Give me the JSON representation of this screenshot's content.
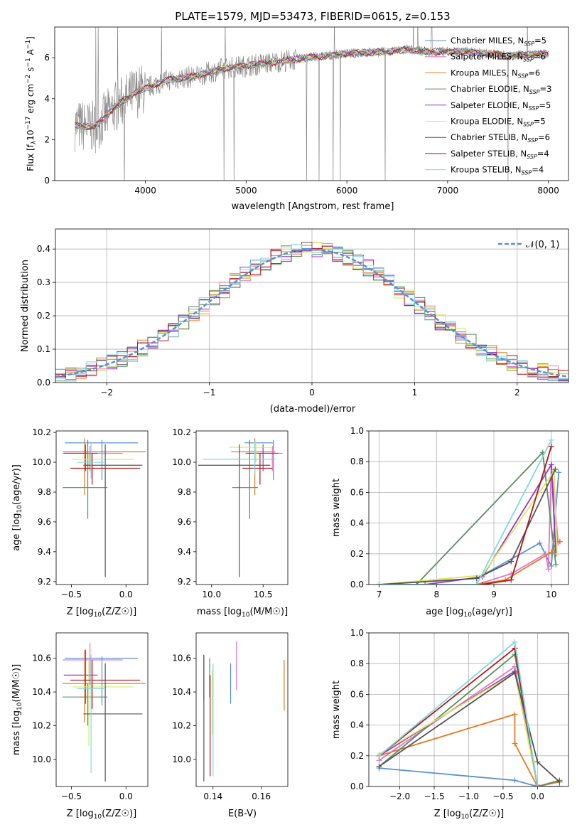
{
  "chart_data": [
    {
      "type": "line",
      "title": "PLATE=1579, MJD=53473, FIBERID=0615, z=0.153",
      "xlabel": "wavelength [Angstrom, rest frame]",
      "ylabel": "Flux [f_λ 10^-17 erg cm^-2 s^-1 A^-1]",
      "ylabel_parts": {
        "pre": "Flux [f",
        "sub": "λ",
        "mid": "10",
        "sup1": "−17",
        "mid2": " erg cm",
        "sup2": "−2",
        "mid3": " s",
        "sup3": "−1",
        "mid4": " A",
        "sup4": "−1",
        "post": "]"
      },
      "xlim": [
        3100,
        8200
      ],
      "ylim": [
        0,
        7.5
      ],
      "xticks": [
        4000,
        5000,
        6000,
        7000,
        8000
      ],
      "yticks": [
        0,
        2,
        4,
        6
      ],
      "grid": false,
      "legend_position": "top-right",
      "spectrum_anchors": {
        "x": [
          3300,
          3500,
          3700,
          3900,
          4000,
          4200,
          4500,
          4800,
          5000,
          5300,
          5600,
          6000,
          6400,
          6600,
          6800,
          7200,
          7600,
          8000
        ],
        "y": [
          2.7,
          2.6,
          3.6,
          4.3,
          4.5,
          4.9,
          5.1,
          5.5,
          5.6,
          5.8,
          6.0,
          6.2,
          6.3,
          6.4,
          6.3,
          6.3,
          6.1,
          6.2
        ]
      },
      "series": [
        {
          "name": "Chabrier MILES",
          "nssp": "5",
          "color": "#5b8fd4"
        },
        {
          "name": "Salpeter MILES",
          "nssp": "6",
          "color": "#e377c2"
        },
        {
          "name": "Kroupa MILES",
          "nssp": "6",
          "color": "#e07a23"
        },
        {
          "name": "Chabrier ELODIE",
          "nssp": "3",
          "color": "#5a8f5f"
        },
        {
          "name": "Salpeter ELODIE",
          "nssp": "5",
          "color": "#9b30c8"
        },
        {
          "name": "Kroupa ELODIE",
          "nssp": "5",
          "color": "#d9e85c"
        },
        {
          "name": "Chabrier STELIB",
          "nssp": "6",
          "color": "#555555"
        },
        {
          "name": "Salpeter STELIB",
          "nssp": "4",
          "color": "#b01515"
        },
        {
          "name": "Kroupa STELIB",
          "nssp": "4",
          "color": "#7fd8e0"
        }
      ],
      "data_color": "#808080"
    },
    {
      "type": "line",
      "xlabel": "(data-model)/error",
      "ylabel": "Normed distribution",
      "xlim": [
        -2.5,
        2.5
      ],
      "ylim": [
        0,
        0.46
      ],
      "xticks": [
        -2,
        -1,
        0,
        1,
        2
      ],
      "yticks": [
        0.0,
        0.1,
        0.2,
        0.3,
        0.4
      ],
      "grid": true,
      "legend_position": "top-right",
      "gaussian_label": "𝒩(0, 1)",
      "gaussian_color": "#5b8fd4",
      "bin_width": 0.1
    },
    {
      "type": "scatter",
      "xlabel": "Z [log10(Z/Z☉)]",
      "ylabel": "age [log10(age/yr)]",
      "xlim": [
        -0.64,
        0.2
      ],
      "ylim": [
        9.18,
        10.21
      ],
      "xticks": [
        -0.5,
        0.0
      ],
      "yticks": [
        9.2,
        9.4,
        9.6,
        9.8,
        10.0,
        10.2
      ],
      "points": [
        {
          "x": -0.22,
          "xerr": [
            0.34,
            0.33
          ],
          "y": 10.13,
          "yerr": [
            0.25,
            0.02
          ],
          "series": 0
        },
        {
          "x": -0.33,
          "xerr": [
            0.25,
            0.3
          ],
          "y": 10.06,
          "yerr": [
            0.12,
            0.05
          ],
          "series": 1
        },
        {
          "x": -0.38,
          "xerr": [
            0.2,
            0.56
          ],
          "y": 10.07,
          "yerr": [
            0.29,
            0.09
          ],
          "series": 2
        },
        {
          "x": -0.35,
          "xerr": [
            0.23,
            0.18
          ],
          "y": 9.83,
          "yerr": [
            0.21,
            0.32
          ],
          "series": 3
        },
        {
          "x": -0.37,
          "xerr": [
            0.2,
            0.11
          ],
          "y": 10.06,
          "yerr": [
            0.12,
            0.06
          ],
          "series": 4
        },
        {
          "x": -0.34,
          "xerr": [
            0.15,
            0.41
          ],
          "y": 10.02,
          "yerr": [
            0.07,
            0.04
          ],
          "series": 5
        },
        {
          "x": -0.19,
          "xerr": [
            0.2,
            0.34
          ],
          "y": 9.98,
          "yerr": [
            0.75,
            0.14
          ],
          "series": 6
        },
        {
          "x": -0.31,
          "xerr": [
            0.2,
            0.44
          ],
          "y": 9.96,
          "yerr": [
            0.11,
            0.1
          ],
          "series": 7
        },
        {
          "x": -0.32,
          "xerr": [
            0.13,
            0.13
          ],
          "y": 10.0,
          "yerr": [
            0.11,
            0.14
          ],
          "series": 8
        }
      ]
    },
    {
      "type": "scatter",
      "xlabel": "mass [log10(M/M☉)]",
      "xlim": [
        9.85,
        10.74
      ],
      "ylim": [
        9.18,
        10.21
      ],
      "xticks": [
        10.0,
        10.5
      ],
      "yticks": [
        9.2,
        9.4,
        9.6,
        9.8,
        10.0,
        10.2
      ],
      "points": [
        {
          "x": 10.6,
          "xerr": [
            0.28,
            0.0
          ],
          "y": 10.13,
          "yerr": [
            0.25,
            0.02
          ],
          "series": 0
        },
        {
          "x": 10.59,
          "xerr": [
            0.15,
            0.1
          ],
          "y": 10.06,
          "yerr": [
            0.12,
            0.05
          ],
          "series": 1
        },
        {
          "x": 10.42,
          "xerr": [
            0.23,
            0.2
          ],
          "y": 10.07,
          "yerr": [
            0.29,
            0.09
          ],
          "series": 2
        },
        {
          "x": 10.37,
          "xerr": [
            0.17,
            0.08
          ],
          "y": 9.83,
          "yerr": [
            0.21,
            0.32
          ],
          "series": 3
        },
        {
          "x": 10.5,
          "xerr": [
            0.17,
            0.15
          ],
          "y": 10.06,
          "yerr": [
            0.12,
            0.06
          ],
          "series": 4
        },
        {
          "x": 10.43,
          "xerr": [
            0.26,
            0.15
          ],
          "y": 10.1,
          "yerr": [
            0.1,
            0.04
          ],
          "series": 5
        },
        {
          "x": 10.27,
          "xerr": [
            0.4,
            0.3
          ],
          "y": 9.98,
          "yerr": [
            0.75,
            0.14
          ],
          "series": 6
        },
        {
          "x": 10.47,
          "xerr": [
            0.17,
            0.12
          ],
          "y": 9.96,
          "yerr": [
            0.11,
            0.1
          ],
          "series": 7
        },
        {
          "x": 10.42,
          "xerr": [
            0.5,
            0.2
          ],
          "y": 10.02,
          "yerr": [
            0.1,
            0.12
          ],
          "series": 8
        }
      ]
    },
    {
      "type": "line",
      "xlabel": "age [log10(age/yr)]",
      "ylabel": "mass weight",
      "xlim": [
        6.82,
        10.3
      ],
      "ylim": [
        0,
        1
      ],
      "xticks": [
        7,
        8,
        9,
        10
      ],
      "yticks": [
        0.0,
        0.2,
        0.4,
        0.6,
        0.8,
        1.0
      ],
      "grid": true,
      "series": [
        {
          "x": [
            8.7,
            9.8,
            10.0,
            10.13
          ],
          "y": [
            0.04,
            0.27,
            0.12,
            0.73
          ],
          "series": 0
        },
        {
          "x": [
            8.7,
            9.3,
            9.9,
            9.95,
            10.0,
            10.12
          ],
          "y": [
            0.0,
            0.07,
            0.2,
            0.1,
            0.78,
            0.27
          ],
          "series": 1
        },
        {
          "x": [
            8.7,
            9.2,
            10.0,
            10.1,
            10.15
          ],
          "y": [
            0.0,
            0.03,
            0.21,
            0.28,
            0.28
          ],
          "series": 2
        },
        {
          "x": [
            7.0,
            7.65,
            9.85,
            10.08
          ],
          "y": [
            0.0,
            0.0,
            0.86,
            0.13
          ],
          "series": 3
        },
        {
          "x": [
            7.8,
            8.8,
            10.0,
            10.08
          ],
          "y": [
            0.0,
            0.05,
            0.78,
            0.2
          ],
          "series": 4
        },
        {
          "x": [
            7.0,
            8.8,
            10.05,
            10.1
          ],
          "y": [
            0.0,
            0.06,
            0.74,
            0.2
          ],
          "series": 5
        },
        {
          "x": [
            7.0,
            8.7,
            9.3,
            10.07
          ],
          "y": [
            0.0,
            0.04,
            0.15,
            0.75
          ],
          "series": 6
        },
        {
          "x": [
            8.8,
            9.3,
            10.0
          ],
          "y": [
            0.0,
            0.03,
            0.9
          ],
          "series": 7
        },
        {
          "x": [
            7.0,
            8.7,
            10.0
          ],
          "y": [
            0.0,
            0.0,
            0.94
          ],
          "series": 8
        }
      ]
    },
    {
      "type": "scatter",
      "xlabel": "Z [log10(Z/Z☉)]",
      "ylabel": "mass [log10(M/M☉)]",
      "xlim": [
        -0.64,
        0.2
      ],
      "ylim": [
        9.84,
        10.75
      ],
      "xticks": [
        -0.5,
        0.0
      ],
      "yticks": [
        10.0,
        10.2,
        10.4,
        10.6
      ],
      "points": [
        {
          "x": -0.22,
          "xerr": [
            0.34,
            0.33
          ],
          "y": 10.6,
          "yerr": [
            0.28,
            0.01
          ],
          "series": 0
        },
        {
          "x": -0.33,
          "xerr": [
            0.25,
            0.3
          ],
          "y": 10.59,
          "yerr": [
            0.15,
            0.1
          ],
          "series": 1
        },
        {
          "x": -0.38,
          "xerr": [
            0.2,
            0.56
          ],
          "y": 10.45,
          "yerr": [
            0.23,
            0.2
          ],
          "series": 2
        },
        {
          "x": -0.35,
          "xerr": [
            0.23,
            0.18
          ],
          "y": 10.37,
          "yerr": [
            0.17,
            0.08
          ],
          "series": 3
        },
        {
          "x": -0.37,
          "xerr": [
            0.2,
            0.11
          ],
          "y": 10.5,
          "yerr": [
            0.17,
            0.15
          ],
          "series": 4
        },
        {
          "x": -0.34,
          "xerr": [
            0.15,
            0.41
          ],
          "y": 10.43,
          "yerr": [
            0.35,
            0.15
          ],
          "series": 5
        },
        {
          "x": -0.19,
          "xerr": [
            0.2,
            0.34
          ],
          "y": 10.27,
          "yerr": [
            0.4,
            0.3
          ],
          "series": 6
        },
        {
          "x": -0.31,
          "xerr": [
            0.2,
            0.44
          ],
          "y": 10.47,
          "yerr": [
            0.17,
            0.12
          ],
          "series": 7
        },
        {
          "x": -0.32,
          "xerr": [
            0.13,
            0.13
          ],
          "y": 10.42,
          "yerr": [
            0.5,
            0.2
          ],
          "series": 8
        }
      ]
    },
    {
      "type": "scatter",
      "xlabel": "E(B-V)",
      "xlim": [
        0.133,
        0.171
      ],
      "ylim": [
        9.84,
        10.75
      ],
      "xticks": [
        0.14,
        0.16
      ],
      "yticks": [
        10.0,
        10.2,
        10.4,
        10.6
      ],
      "points": [
        {
          "x": 0.1473,
          "y": 10.45,
          "yerr": [
            0.12,
            0.12
          ],
          "series": 0
        },
        {
          "x": 0.1497,
          "y": 10.55,
          "yerr": [
            0.14,
            0.15
          ],
          "series": 1
        },
        {
          "x": 0.1695,
          "y": 10.44,
          "yerr": [
            0.15,
            0.15
          ],
          "series": 2
        },
        {
          "x": 0.1386,
          "y": 10.5,
          "yerr": [
            0.13,
            0.1
          ],
          "series": 3
        },
        {
          "x": 0.1362,
          "y": 10.5,
          "yerr": [
            0.15,
            0.12
          ],
          "series": 4
        },
        {
          "x": 0.1397,
          "y": 10.35,
          "yerr": [
            0.2,
            0.18
          ],
          "series": 5
        },
        {
          "x": 0.1362,
          "y": 10.25,
          "yerr": [
            0.38,
            0.37
          ],
          "series": 6
        },
        {
          "x": 0.1388,
          "y": 10.2,
          "yerr": [
            0.3,
            0.3
          ],
          "series": 7
        },
        {
          "x": 0.14,
          "y": 10.25,
          "yerr": [
            0.35,
            0.32
          ],
          "series": 8
        }
      ]
    },
    {
      "type": "line",
      "xlabel": "Z [log10(Z/Z☉)]",
      "ylabel": "mass weight",
      "xlim": [
        -2.45,
        0.45
      ],
      "ylim": [
        0,
        1
      ],
      "xticks": [
        -2.0,
        -1.5,
        -1.0,
        -0.5,
        0.0
      ],
      "yticks": [
        0.0,
        0.2,
        0.4,
        0.6,
        0.8,
        1.0
      ],
      "grid": true,
      "series": [
        {
          "x": [
            -2.3,
            -0.33,
            0.0,
            0.32
          ],
          "y": [
            0.12,
            0.04,
            0.0,
            0.0
          ],
          "series": 0
        },
        {
          "x": [
            -2.3,
            -0.33,
            0.0
          ],
          "y": [
            0.17,
            0.78,
            0.01
          ],
          "series": 1
        },
        {
          "x": [
            -2.3,
            -0.33,
            -0.33,
            0.0,
            0.32
          ],
          "y": [
            0.2,
            0.47,
            0.28,
            0.0,
            0.03
          ],
          "series": 2
        },
        {
          "x": [
            -2.3,
            -0.33,
            0.0,
            0.32
          ],
          "y": [
            0.13,
            0.86,
            0.0,
            0.04
          ],
          "series": 3
        },
        {
          "x": [
            -2.3,
            -0.33,
            0.0
          ],
          "y": [
            0.2,
            0.75,
            0.0
          ],
          "series": 4
        },
        {
          "x": [
            -2.3,
            -0.33,
            0.0
          ],
          "y": [
            0.21,
            0.74,
            0.0
          ],
          "series": 5
        },
        {
          "x": [
            -2.3,
            -0.33,
            0.0,
            0.32
          ],
          "y": [
            0.13,
            0.74,
            0.16,
            0.03
          ],
          "series": 6
        },
        {
          "x": [
            -2.3,
            -0.33,
            0.0
          ],
          "y": [
            0.2,
            0.9,
            0.0
          ],
          "series": 7
        },
        {
          "x": [
            -2.3,
            -0.33,
            0.0
          ],
          "y": [
            0.2,
            0.94,
            0.0
          ],
          "series": 8
        }
      ]
    }
  ]
}
